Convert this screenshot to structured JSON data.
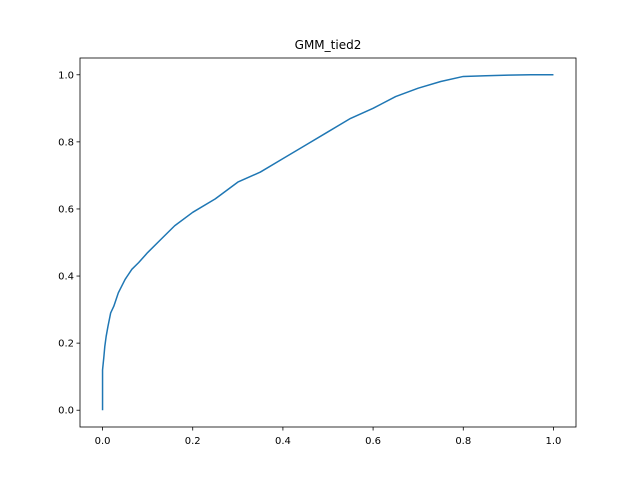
{
  "chart_data": {
    "type": "line",
    "title": "GMM_tied2",
    "xlabel": "",
    "ylabel": "",
    "xlim": [
      -0.05,
      1.05
    ],
    "ylim": [
      -0.05,
      1.05
    ],
    "xticks": [
      0.0,
      0.2,
      0.4,
      0.6,
      0.8,
      1.0
    ],
    "xtick_labels": [
      "0.0",
      "0.2",
      "0.4",
      "0.6",
      "0.8",
      "1.0"
    ],
    "yticks": [
      0.0,
      0.2,
      0.4,
      0.6,
      0.8,
      1.0
    ],
    "ytick_labels": [
      "0.0",
      "0.2",
      "0.4",
      "0.6",
      "0.8",
      "1.0"
    ],
    "grid": false,
    "legend": "none",
    "color": "#1f77b4",
    "series": [
      {
        "x": [
          0.0,
          0.0,
          0.003,
          0.005,
          0.008,
          0.012,
          0.018,
          0.025,
          0.035,
          0.05,
          0.065,
          0.08,
          0.1,
          0.13,
          0.16,
          0.2,
          0.25,
          0.3,
          0.35,
          0.4,
          0.45,
          0.5,
          0.55,
          0.6,
          0.65,
          0.7,
          0.75,
          0.8,
          0.85,
          0.9,
          0.95,
          1.0
        ],
        "y": [
          0.0,
          0.12,
          0.16,
          0.19,
          0.22,
          0.25,
          0.29,
          0.31,
          0.35,
          0.39,
          0.42,
          0.44,
          0.47,
          0.51,
          0.55,
          0.59,
          0.63,
          0.68,
          0.71,
          0.75,
          0.79,
          0.83,
          0.87,
          0.9,
          0.935,
          0.96,
          0.98,
          0.995,
          0.997,
          0.999,
          1.0,
          1.0
        ]
      }
    ]
  }
}
